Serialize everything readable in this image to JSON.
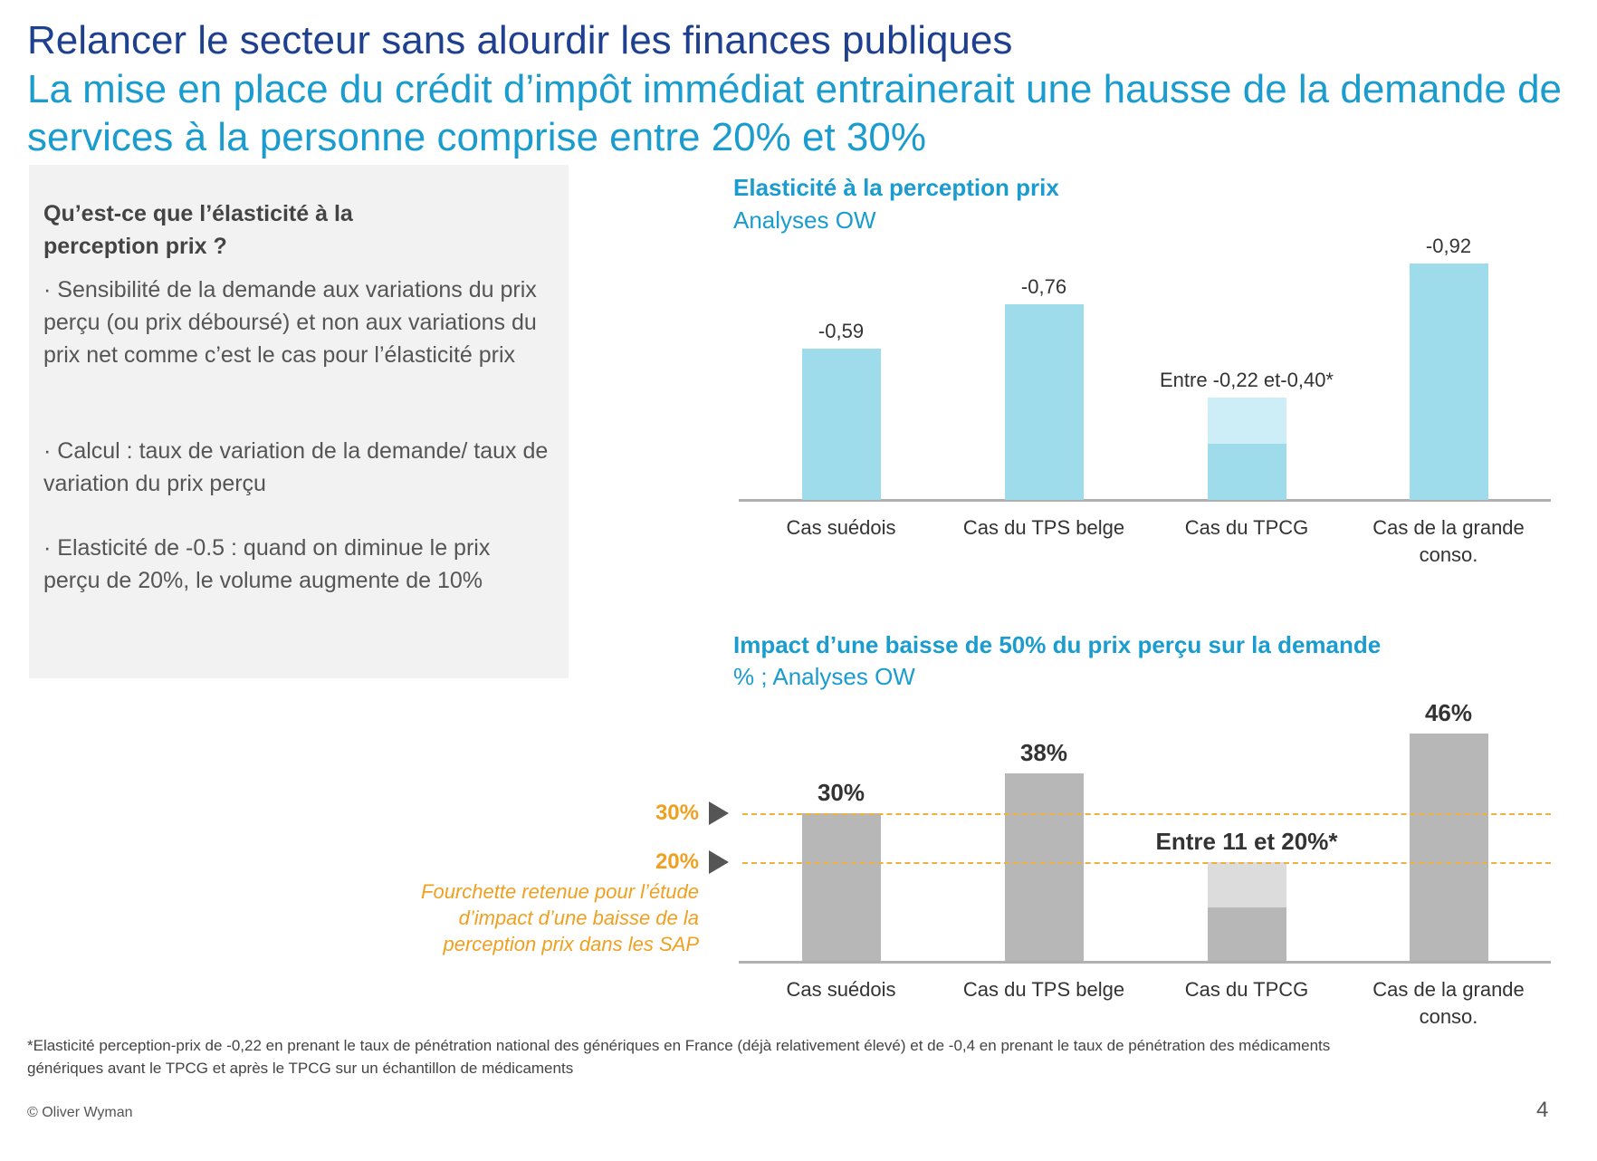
{
  "title": "Relancer le secteur sans alourdir les finances publiques",
  "subtitle": "La mise en place du crédit d’impôt immédiat entrainerait une hausse de la demande de services à la personne comprise entre 20% et 30%",
  "box": {
    "question": "Qu’est-ce que l’élasticité à la perception prix ?",
    "p1": "· Sensibilité de la demande aux variations du prix perçu (ou prix déboursé) et non aux variations du prix net comme c’est le cas pour l’élasticité prix",
    "p2": "· Calcul : taux de variation de la demande/ taux de variation du prix perçu",
    "p3": "· Elasticité de -0.5 : quand on diminue le prix perçu de 20%, le volume augmente de 10%"
  },
  "chart_data": [
    {
      "type": "bar",
      "title": "Elasticité à la perception prix",
      "subtitle": "Analyses OW",
      "categories": [
        "Cas suédois",
        "Cas du TPS belge",
        "Cas du TPCG",
        "Cas de la grande conso."
      ],
      "values": [
        0.59,
        0.76,
        0.22,
        0.92
      ],
      "range_upper": [
        null,
        null,
        0.4,
        null
      ],
      "labels": [
        "-0,59",
        "-0,76",
        "Entre -0,22 et-0,40*",
        "-0,92"
      ],
      "color": "#9edcec",
      "light_color": "#cdeef6"
    },
    {
      "type": "bar",
      "title": "Impact d’une baisse de 50% du prix perçu sur la demande",
      "subtitle": "% ; Analyses OW",
      "categories": [
        "Cas suédois",
        "Cas du TPS belge",
        "Cas du TPCG",
        "Cas de la grande conso."
      ],
      "values": [
        30,
        38,
        11,
        46
      ],
      "range_upper": [
        null,
        null,
        20,
        null
      ],
      "labels": [
        "30%",
        "38%",
        "Entre 11 et 20%*",
        "46%"
      ],
      "color": "#b7b7b7",
      "light_color": "#dcdcdc",
      "reference_lines": [
        {
          "value": 30,
          "label": "30%"
        },
        {
          "value": 20,
          "label": "20%"
        }
      ],
      "reference_note": "Fourchette retenue pour l’étude d’impact d’une baisse de la perception prix dans les SAP"
    }
  ],
  "footnote1": "*Elasticité perception-prix de -0,22 en prenant le taux de pénétration national des génériques en France (déjà relativement élevé) et de -0,4 en prenant le taux de pénétration des médicaments",
  "footnote2": "génériques avant le TPCG et après le TPCG sur un échantillon de médicaments",
  "copyright": "© Oliver Wyman",
  "page": "4"
}
